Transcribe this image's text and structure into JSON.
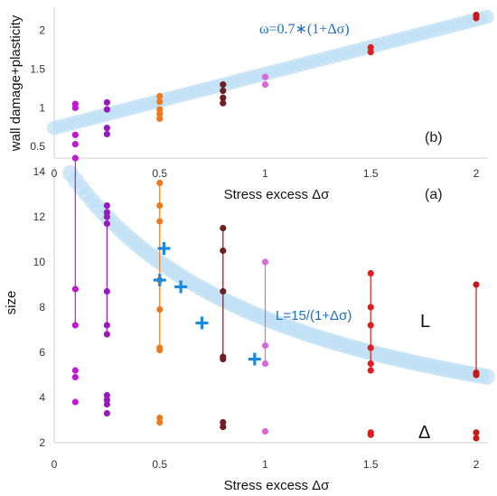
{
  "chart_data": [
    {
      "panel": "(b)",
      "type": "scatter",
      "ylabel": "wall damage+plasticity",
      "xlabel": "Stress excess  Δσ",
      "xlim": [
        0,
        2.05
      ],
      "ylim": [
        0.35,
        2.3
      ],
      "yticks": [
        "0.5",
        "1",
        "1.5",
        "2"
      ],
      "ytick_values": [
        0.5,
        1,
        1.5,
        2
      ],
      "annotation": "ω=0.7∗(1+Δσ)",
      "fit_curve": {
        "formula_coefficient": 0.7,
        "shape": "linear",
        "color": "#bfe0f6",
        "x_range": [
          0,
          2.05
        ]
      },
      "series": [
        {
          "x": 0.1,
          "color": "#c01ad0",
          "values": [
            0.53,
            0.65,
            1.0,
            1.05
          ]
        },
        {
          "x": 0.25,
          "color": "#9a18c0",
          "values": [
            0.66,
            0.74,
            0.98,
            1.07
          ]
        },
        {
          "x": 0.5,
          "color": "#f07a1a",
          "values": [
            0.86,
            0.92,
            0.98,
            1.08,
            1.15
          ]
        },
        {
          "x": 0.8,
          "color": "#6e1f24",
          "values": [
            1.06,
            1.13,
            1.22,
            1.3
          ]
        },
        {
          "x": 1.0,
          "color": "#d86ad8",
          "values": [
            1.3,
            1.4
          ]
        },
        {
          "x": 1.5,
          "color": "#e11d1d",
          "values": [
            1.72,
            1.78
          ]
        },
        {
          "x": 2.0,
          "color": "#c81818",
          "values": [
            2.16,
            2.2
          ]
        }
      ]
    },
    {
      "panel": "(a)",
      "type": "scatter",
      "ylabel": "size",
      "xlabel": "Stress excess  Δσ",
      "xlim": [
        0,
        2.05
      ],
      "ylim": [
        2,
        14.2
      ],
      "xticks": [
        "0",
        "0.5",
        "1",
        "1.5",
        "2"
      ],
      "xtick_values": [
        0,
        0.5,
        1,
        1.5,
        2
      ],
      "yticks": [
        "2",
        "4",
        "6",
        "8",
        "10",
        "12",
        "14"
      ],
      "ytick_values": [
        2,
        4,
        6,
        8,
        10,
        12,
        14
      ],
      "annotation": "L=15/(1+Δσ)",
      "label_L": "L",
      "label_delta": "Δ",
      "fit_curve": {
        "formula_numerator": 15,
        "shape": "reciprocal",
        "color": "#bfe0f6",
        "x_range": [
          0,
          2.05
        ]
      },
      "series": [
        {
          "x": 0.1,
          "color": "#c01ad0",
          "L_values": [
            14.6,
            8.8,
            7.2
          ],
          "delta_values": [
            5.2,
            4.9,
            3.8
          ],
          "range": [
            7.2,
            14.6
          ]
        },
        {
          "x": 0.25,
          "color": "#9a18c0",
          "L_values": [
            12.5,
            12.2,
            12.0,
            11.7,
            8.7,
            7.2,
            6.8
          ],
          "delta_values": [
            4.1,
            3.9,
            3.7,
            3.3
          ],
          "range": [
            6.8,
            12.5
          ]
        },
        {
          "x": 0.5,
          "color": "#f07a1a",
          "L_values": [
            13.5,
            12.5,
            11.8,
            9.2,
            7.9,
            6.2,
            6.1
          ],
          "delta_values": [
            3.1,
            2.9
          ],
          "range": [
            6.1,
            13.5
          ]
        },
        {
          "x": 0.8,
          "color": "#6e1f24",
          "L_values": [
            11.5,
            10.5,
            8.7,
            5.8,
            5.7
          ],
          "delta_values": [
            2.9,
            2.7
          ],
          "range": [
            5.7,
            11.5
          ]
        },
        {
          "x": 1.0,
          "color": "#d86ad8",
          "L_values": [
            10.0,
            6.3,
            5.5
          ],
          "delta_values": [
            2.5
          ],
          "range": [
            5.5,
            10.0
          ]
        },
        {
          "x": 1.5,
          "color": "#e11d1d",
          "L_values": [
            9.5,
            8.0,
            7.2,
            6.2,
            5.5,
            5.2
          ],
          "delta_values": [
            2.45,
            2.35
          ],
          "range": [
            5.2,
            9.5
          ]
        },
        {
          "x": 2.0,
          "color": "#c81818",
          "L_values": [
            9.0,
            5.1,
            5.0
          ],
          "delta_values": [
            2.45,
            2.2
          ],
          "range": [
            5.0,
            9.0
          ]
        }
      ],
      "cross_markers": {
        "color": "#1a8ae0",
        "points": [
          {
            "x": 0.52,
            "y": 10.6
          },
          {
            "x": 0.5,
            "y": 9.2
          },
          {
            "x": 0.6,
            "y": 8.9
          },
          {
            "x": 0.7,
            "y": 7.3
          },
          {
            "x": 0.95,
            "y": 5.7
          }
        ]
      }
    }
  ]
}
